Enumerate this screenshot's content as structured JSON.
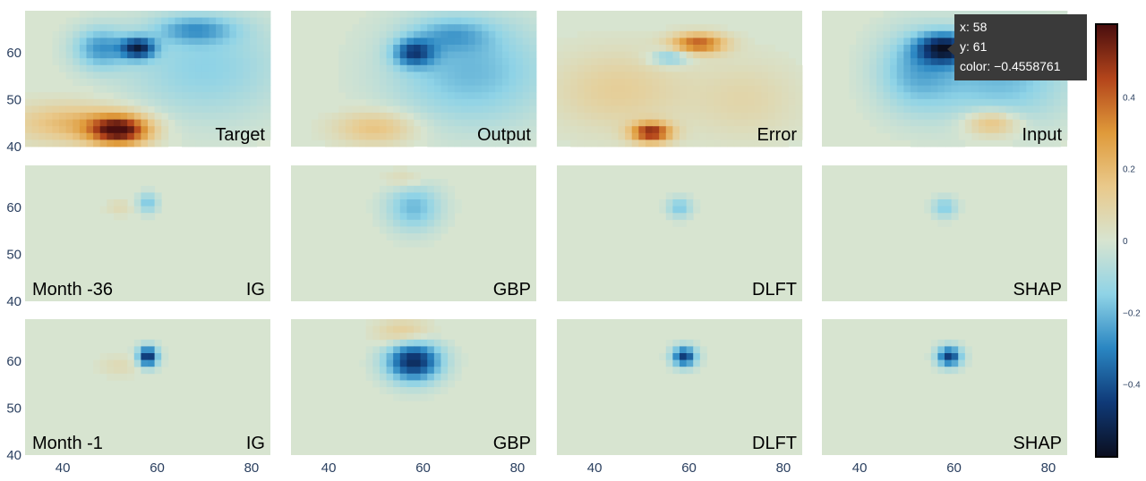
{
  "chart_data": {
    "type": "heatmap",
    "layout": {
      "rows": 3,
      "cols": 4
    },
    "x_range": [
      32,
      84
    ],
    "y_range": [
      40,
      69
    ],
    "x_ticks": [
      40,
      60,
      80
    ],
    "x_tick_labels": [
      "40",
      "60",
      "80"
    ],
    "y_ticks": [
      40,
      50,
      60
    ],
    "y_tick_labels": [
      "40",
      "50",
      "60"
    ],
    "color_range": [
      -0.6,
      0.6
    ],
    "colorbar": {
      "ticks": [
        0.4,
        0.2,
        0,
        -0.2,
        -0.4
      ],
      "tick_labels": [
        "0.4",
        "0.2",
        "0",
        "−0.2",
        "−0.4"
      ],
      "colors": [
        "#0b0f20",
        "#0f3a78",
        "#2a86c2",
        "#8fd3e6",
        "#d7e4d0",
        "#e9c98b",
        "#df9a3a",
        "#b4451b",
        "#4a0e0e"
      ]
    },
    "panels": [
      {
        "labels": [
          "",
          "Target"
        ],
        "blobs": [
          {
            "x": 52,
            "y": 43.5,
            "sx": 4.5,
            "sy": 2.2,
            "a": 0.58
          },
          {
            "x": 42,
            "y": 45,
            "sx": 9,
            "sy": 3,
            "a": 0.2
          },
          {
            "x": 56,
            "y": 61,
            "sx": 2.5,
            "sy": 1.6,
            "a": -0.45
          },
          {
            "x": 48,
            "y": 61,
            "sx": 4,
            "sy": 3,
            "a": -0.25
          },
          {
            "x": 70,
            "y": 57,
            "sx": 12,
            "sy": 8,
            "a": -0.15
          },
          {
            "x": 68,
            "y": 65,
            "sx": 6,
            "sy": 2,
            "a": -0.2
          }
        ]
      },
      {
        "labels": [
          "",
          "Output"
        ],
        "blobs": [
          {
            "x": 50,
            "y": 44,
            "sx": 6,
            "sy": 2.5,
            "a": 0.18
          },
          {
            "x": 58,
            "y": 60,
            "sx": 3,
            "sy": 2,
            "a": -0.35
          },
          {
            "x": 70,
            "y": 56,
            "sx": 12,
            "sy": 8,
            "a": -0.2
          },
          {
            "x": 66,
            "y": 64,
            "sx": 6,
            "sy": 2.5,
            "a": -0.15
          }
        ]
      },
      {
        "labels": [
          "",
          "Error"
        ],
        "blobs": [
          {
            "x": 52,
            "y": 43,
            "sx": 3,
            "sy": 1.5,
            "a": 0.5
          },
          {
            "x": 62,
            "y": 62,
            "sx": 4,
            "sy": 1.5,
            "a": 0.4
          },
          {
            "x": 45,
            "y": 52,
            "sx": 10,
            "sy": 6,
            "a": 0.12
          },
          {
            "x": 72,
            "y": 50,
            "sx": 8,
            "sy": 6,
            "a": 0.08
          },
          {
            "x": 56,
            "y": 59,
            "sx": 3,
            "sy": 1.2,
            "a": -0.2
          }
        ]
      },
      {
        "labels": [
          "",
          "Input"
        ],
        "blobs": [
          {
            "x": 58,
            "y": 61,
            "sx": 4,
            "sy": 2.2,
            "a": -0.46
          },
          {
            "x": 52,
            "y": 56,
            "sx": 6,
            "sy": 6,
            "a": -0.2
          },
          {
            "x": 70,
            "y": 55,
            "sx": 10,
            "sy": 7,
            "a": -0.2
          },
          {
            "x": 68,
            "y": 45,
            "sx": 4,
            "sy": 2,
            "a": 0.22
          }
        ]
      },
      {
        "labels": [
          "Month -36",
          "IG"
        ],
        "blobs": [
          {
            "x": 58,
            "y": 61,
            "sx": 1.5,
            "sy": 1.5,
            "a": -0.18
          },
          {
            "x": 52,
            "y": 60,
            "sx": 2,
            "sy": 1.2,
            "a": 0.06
          }
        ]
      },
      {
        "labels": [
          "",
          "GBP"
        ],
        "blobs": [
          {
            "x": 58,
            "y": 60,
            "sx": 4,
            "sy": 3.5,
            "a": -0.2
          },
          {
            "x": 56,
            "y": 66,
            "sx": 3,
            "sy": 1.5,
            "a": 0.08
          }
        ]
      },
      {
        "labels": [
          "",
          "DLFT"
        ],
        "blobs": [
          {
            "x": 58,
            "y": 60,
            "sx": 1.8,
            "sy": 1.5,
            "a": -0.18
          }
        ]
      },
      {
        "labels": [
          "",
          "SHAP"
        ],
        "blobs": [
          {
            "x": 58,
            "y": 60,
            "sx": 1.8,
            "sy": 1.5,
            "a": -0.17
          }
        ]
      },
      {
        "labels": [
          "Month -1",
          "IG"
        ],
        "blobs": [
          {
            "x": 58,
            "y": 61,
            "sx": 1.5,
            "sy": 1.5,
            "a": -0.5
          },
          {
            "x": 52,
            "y": 59,
            "sx": 3,
            "sy": 1.5,
            "a": 0.06
          }
        ]
      },
      {
        "labels": [
          "",
          "GBP"
        ],
        "blobs": [
          {
            "x": 58,
            "y": 60,
            "sx": 4,
            "sy": 3,
            "a": -0.5
          },
          {
            "x": 56,
            "y": 66,
            "sx": 4,
            "sy": 2,
            "a": 0.15
          }
        ]
      },
      {
        "labels": [
          "",
          "DLFT"
        ],
        "blobs": [
          {
            "x": 59,
            "y": 61,
            "sx": 1.8,
            "sy": 1.5,
            "a": -0.45
          }
        ]
      },
      {
        "labels": [
          "",
          "SHAP"
        ],
        "blobs": [
          {
            "x": 59,
            "y": 61,
            "sx": 1.8,
            "sy": 1.5,
            "a": -0.45
          }
        ]
      }
    ]
  },
  "tooltip": {
    "x": "x: 58",
    "y": "y: 61",
    "color": "color: −0.4558761"
  }
}
